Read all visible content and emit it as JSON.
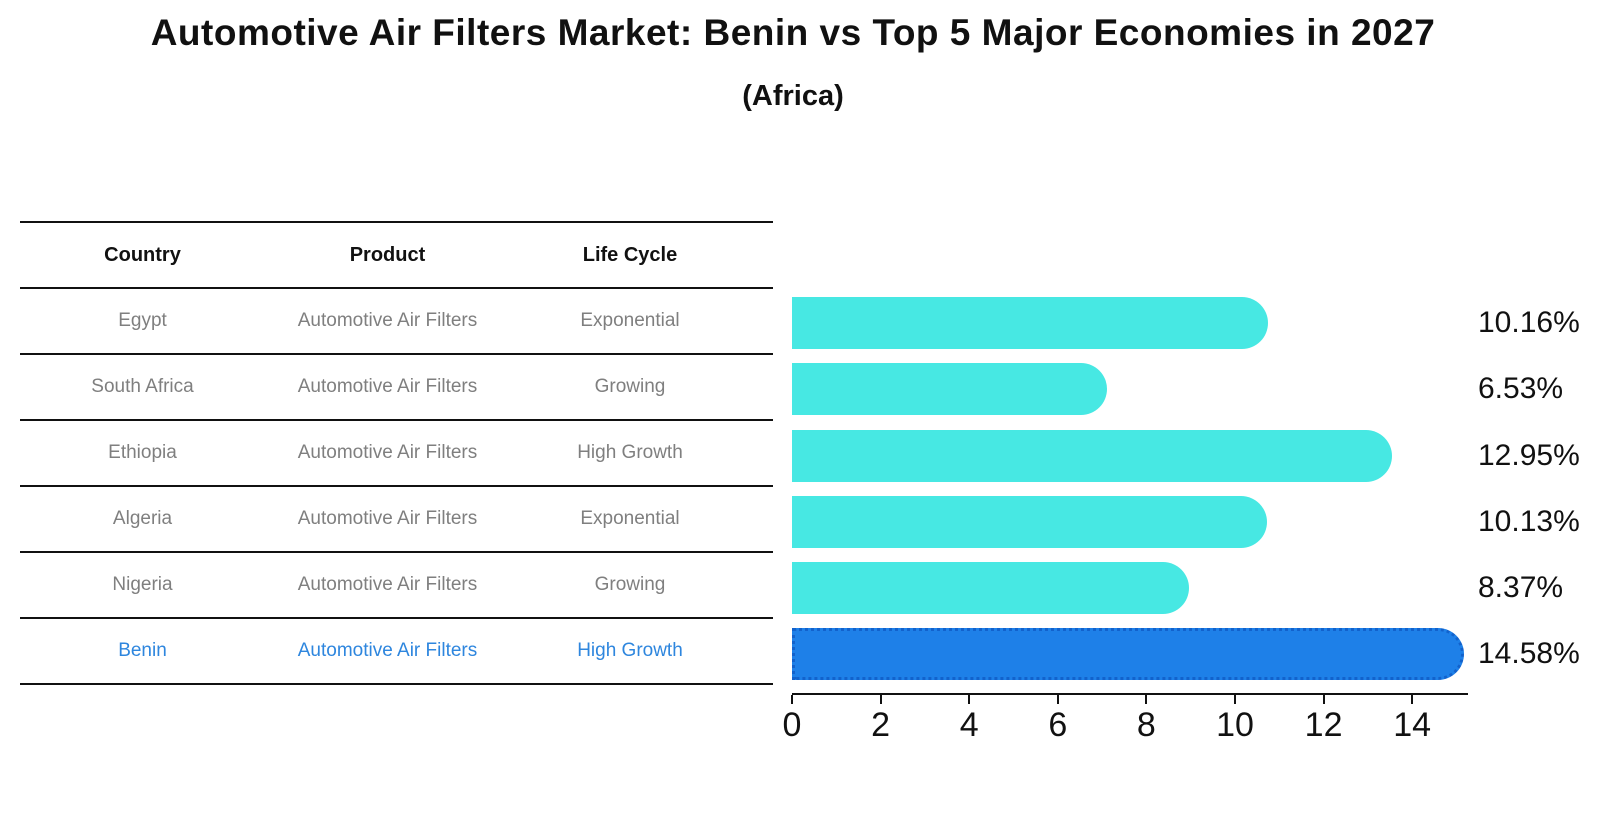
{
  "title": "Automotive Air Filters Market: Benin vs Top 5 Major Economies in 2027",
  "subtitle": "(Africa)",
  "table": {
    "headers": {
      "country": "Country",
      "product": "Product",
      "life_cycle": "Life Cycle"
    },
    "rows": [
      {
        "country": "Egypt",
        "product": "Automotive Air Filters",
        "life_cycle": "Exponential",
        "highlight": false
      },
      {
        "country": "South Africa",
        "product": "Automotive Air Filters",
        "life_cycle": "Growing",
        "highlight": false
      },
      {
        "country": "Ethiopia",
        "product": "Automotive Air Filters",
        "life_cycle": "High Growth",
        "highlight": false
      },
      {
        "country": "Algeria",
        "product": "Automotive Air Filters",
        "life_cycle": "Exponential",
        "highlight": false
      },
      {
        "country": "Nigeria",
        "product": "Automotive Air Filters",
        "life_cycle": "Growing",
        "highlight": false
      },
      {
        "country": "Benin",
        "product": "Automotive Air Filters",
        "life_cycle": "High Growth",
        "highlight": true
      }
    ]
  },
  "chart_data": {
    "type": "bar",
    "orientation": "horizontal",
    "title": "Automotive Air Filters Market: Benin vs Top 5 Major Economies in 2027 (Africa)",
    "categories": [
      "Egypt",
      "South Africa",
      "Ethiopia",
      "Algeria",
      "Nigeria",
      "Benin"
    ],
    "values": [
      10.16,
      6.53,
      12.95,
      10.13,
      8.37,
      14.58
    ],
    "value_labels": [
      "10.16%",
      "6.53%",
      "12.95%",
      "10.13%",
      "8.37%",
      "14.58%"
    ],
    "x_ticks": [
      0,
      2,
      4,
      6,
      8,
      10,
      12,
      14
    ],
    "xlim": [
      0,
      15.3
    ],
    "grid": false,
    "legend": "none",
    "highlight_index": 5
  },
  "colors": {
    "bar": "#47E8E3",
    "highlight_bar": "#1E80E8",
    "highlight_border": "#1262CC",
    "highlight_text": "#2E86DE",
    "row_text": "#7f7f7f",
    "text": "#111111"
  }
}
